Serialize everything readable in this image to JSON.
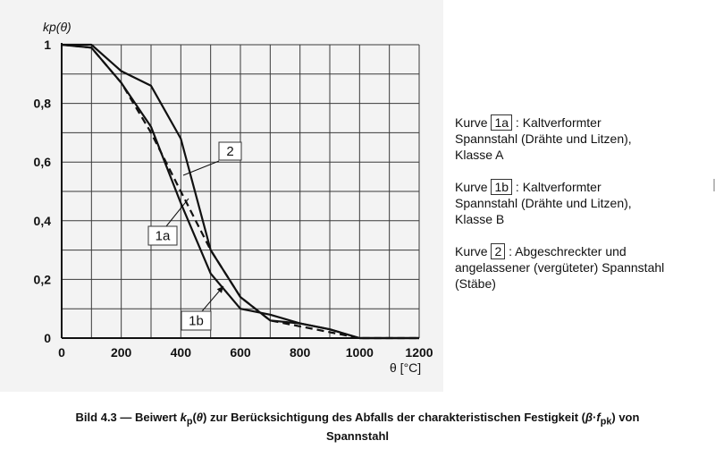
{
  "chart_data": {
    "type": "line",
    "ylabel": "kp(θ)",
    "xlabel": "θ [°C]",
    "xlim": [
      0,
      1200
    ],
    "ylim": [
      0,
      1
    ],
    "x_ticks": [
      0,
      200,
      400,
      600,
      800,
      1000,
      1200
    ],
    "x_tick_labels": [
      "0",
      "200",
      "400",
      "600",
      "800",
      "1000",
      "1200"
    ],
    "y_ticks": [
      0,
      0.2,
      0.4,
      0.6,
      0.8,
      1
    ],
    "y_tick_labels": [
      "0",
      "0,2",
      "0,4",
      "0,6",
      "0,8",
      "1"
    ],
    "grid": true,
    "series": [
      {
        "name": "1a",
        "style": "solid",
        "x": [
          0,
          100,
          200,
          300,
          400,
          500,
          600,
          700,
          800,
          900,
          1000,
          1200
        ],
        "y": [
          1,
          0.99,
          0.87,
          0.72,
          0.46,
          0.22,
          0.1,
          0.08,
          0.05,
          0.03,
          0,
          0
        ]
      },
      {
        "name": "1b",
        "style": "dashed",
        "x": [
          0,
          100,
          200,
          300,
          400,
          500,
          600,
          700,
          800,
          900,
          1000,
          1200
        ],
        "y": [
          1,
          0.99,
          0.87,
          0.7,
          0.5,
          0.3,
          0.14,
          0.06,
          0.04,
          0.02,
          0,
          0
        ]
      },
      {
        "name": "2",
        "style": "solid",
        "x": [
          0,
          100,
          200,
          300,
          400,
          500,
          600,
          700,
          800,
          900,
          1000,
          1200
        ],
        "y": [
          1,
          1,
          0.91,
          0.86,
          0.68,
          0.3,
          0.14,
          0.06,
          0.05,
          0.03,
          0,
          0
        ]
      }
    ],
    "callouts": [
      {
        "label": "2",
        "series": "2"
      },
      {
        "label": "1a",
        "series": "1a"
      },
      {
        "label": "1b",
        "series": "1b"
      }
    ]
  },
  "legend": [
    {
      "prefix": "Kurve",
      "code": "1a",
      "text": ": Kaltverformter",
      "lines": [
        "Spannstahl (Drähte und Litzen),",
        "Klasse A"
      ]
    },
    {
      "prefix": "Kurve",
      "code": "1b",
      "text": ": Kaltverformter",
      "lines": [
        "Spannstahl (Drähte und Litzen),",
        "Klasse B"
      ]
    },
    {
      "prefix": "Kurve",
      "code": "2",
      "text": ": Abgeschreckter und",
      "lines": [
        "angelassener (vergüteter) Spannstahl",
        "(Stäbe)"
      ]
    }
  ],
  "caption": {
    "part1": "Bild 4.3 — Beiwert ",
    "k": "k",
    "p": "p",
    "theta_open": "(",
    "theta": "θ",
    "theta_close": ")",
    "part2": " zur Berücksichtigung des Abfalls der charakteristischen Festigkeit (",
    "beta": "β",
    "dot": "·",
    "f": "f",
    "pk": "pk",
    "part3": ") von",
    "line2": "Spannstahl"
  }
}
